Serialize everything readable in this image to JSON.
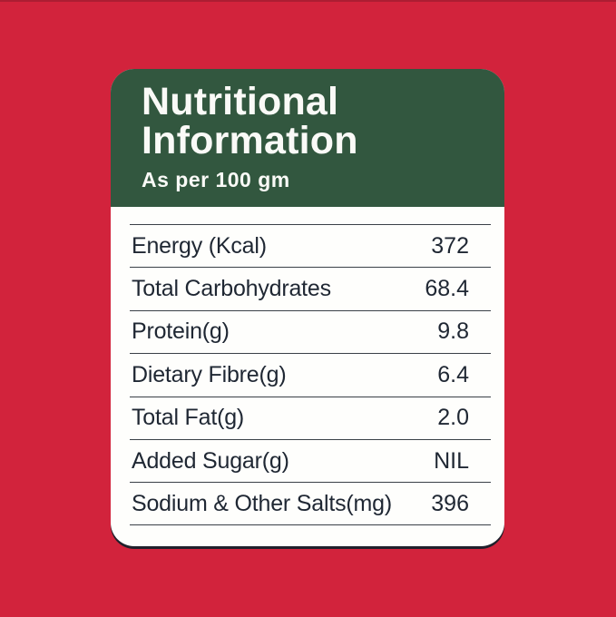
{
  "page": {
    "background_color": "#D2233C"
  },
  "card": {
    "background_color": "#FEFEFC",
    "bottom_shadow_color": "#20202B",
    "header": {
      "background_color": "#32573F",
      "text_color": "#FAFAF7",
      "title_line1": "Nutritional",
      "title_line2": "Information",
      "subtitle": "As per 100 gm"
    },
    "table": {
      "text_color": "#1F2733",
      "line_color": "#3A4047",
      "rows": [
        {
          "label": "Energy (Kcal)",
          "value": "372"
        },
        {
          "label": "Total Carbohydrates",
          "value": "68.4"
        },
        {
          "label": "Protein(g)",
          "value": "9.8"
        },
        {
          "label": "Dietary Fibre(g)",
          "value": "6.4"
        },
        {
          "label": "Total Fat(g)",
          "value": "2.0"
        },
        {
          "label": "Added Sugar(g)",
          "value": "NIL"
        },
        {
          "label": "Sodium & Other Salts(mg)",
          "value": "396"
        }
      ]
    }
  },
  "chart_data": {
    "type": "table",
    "title": "Nutritional Information",
    "subtitle": "As per 100 gm",
    "categories": [
      "Energy (Kcal)",
      "Total Carbohydrates",
      "Protein(g)",
      "Dietary Fibre(g)",
      "Total Fat(g)",
      "Added Sugar(g)",
      "Sodium & Other Salts(mg)"
    ],
    "values": [
      "372",
      "68.4",
      "9.8",
      "6.4",
      "2.0",
      "NIL",
      "396"
    ]
  }
}
